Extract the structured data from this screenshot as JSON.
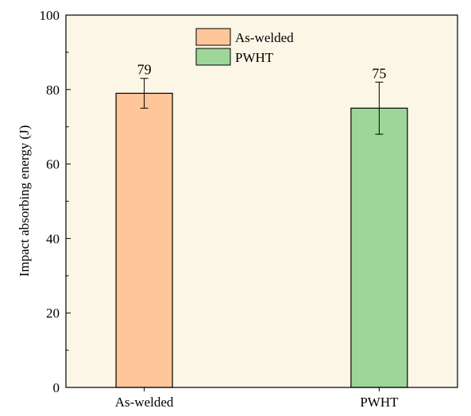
{
  "chart_data": {
    "type": "bar",
    "categories": [
      "As-welded",
      "PWHT"
    ],
    "series": [
      {
        "name": "As-welded",
        "values": [
          79,
          null
        ],
        "error": [
          4,
          null
        ],
        "color": "#FFC799"
      },
      {
        "name": "PWHT",
        "values": [
          null,
          75
        ],
        "error": [
          null,
          7
        ],
        "color": "#9ED69A"
      }
    ],
    "data_labels": [
      "79",
      "75"
    ],
    "title": "",
    "xlabel": "",
    "ylabel": "Impact absorbing energy (J)",
    "ylim": [
      0,
      100
    ],
    "yticks": [
      0,
      20,
      40,
      60,
      80,
      100
    ],
    "plot_background": "#FCF6E6",
    "grid": false,
    "legend": {
      "placement": "top-center",
      "entries": [
        "As-welded",
        "PWHT"
      ]
    }
  }
}
